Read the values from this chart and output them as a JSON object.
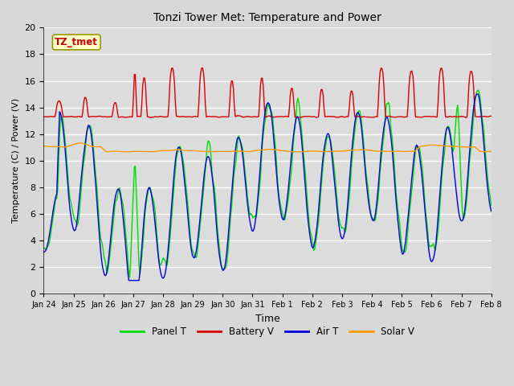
{
  "title": "Tonzi Tower Met: Temperature and Power",
  "xlabel": "Time",
  "ylabel": "Temperature (C) / Power (V)",
  "annotation": "TZ_tmet",
  "ylim": [
    0,
    20
  ],
  "fig_bg_color": "#d8d8d8",
  "plot_bg_color": "#dcdcdc",
  "colors": {
    "panel_t": "#00dd00",
    "battery_v": "#dd0000",
    "air_t": "#0000dd",
    "solar_v": "#ff9900"
  },
  "legend_labels": [
    "Panel T",
    "Battery V",
    "Air T",
    "Solar V"
  ],
  "x_tick_labels": [
    "Jan 24",
    "Jan 25",
    "Jan 26",
    "Jan 27",
    "Jan 28",
    "Jan 29",
    "Jan 30",
    "Jan 31",
    "Feb 1",
    "Feb 2",
    "Feb 3",
    "Feb 4",
    "Feb 5",
    "Feb 6",
    "Feb 7",
    "Feb 8"
  ],
  "n_points": 480
}
